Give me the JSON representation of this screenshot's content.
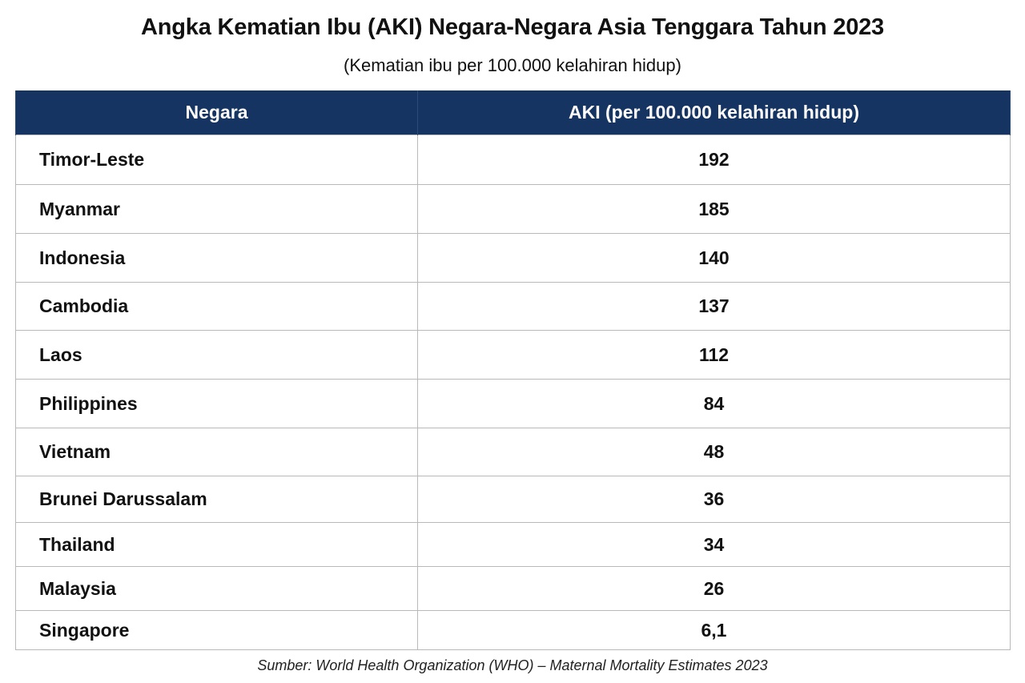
{
  "chart_data": {
    "type": "table",
    "title": "Angka Kematian Ibu (AKI) Negara-Negara Asia Tenggara Tahun 2023",
    "subtitle": "(Kematian ibu per 100.000 kelahiran hidup)",
    "columns": [
      "Negara",
      "AKI (per 100.000 kelahiran hidup)"
    ],
    "rows": [
      {
        "country": "Timor-Leste",
        "value": "192"
      },
      {
        "country": "Myanmar",
        "value": "185"
      },
      {
        "country": "Indonesia",
        "value": "140"
      },
      {
        "country": "Cambodia",
        "value": "137"
      },
      {
        "country": "Laos",
        "value": "112"
      },
      {
        "country": "Philippines",
        "value": "84"
      },
      {
        "country": "Vietnam",
        "value": "48"
      },
      {
        "country": "Brunei Darussalam",
        "value": "36"
      },
      {
        "country": "Thailand",
        "value": "34"
      },
      {
        "country": "Malaysia",
        "value": "26"
      },
      {
        "country": "Singapore",
        "value": "6,1"
      }
    ],
    "source": "Sumber: World Health Organization (WHO) – Maternal Mortality Estimates 2023"
  },
  "colors": {
    "header_background": "#153461",
    "header_text": "#ffffff",
    "grid_line": "#b9b9b9"
  }
}
